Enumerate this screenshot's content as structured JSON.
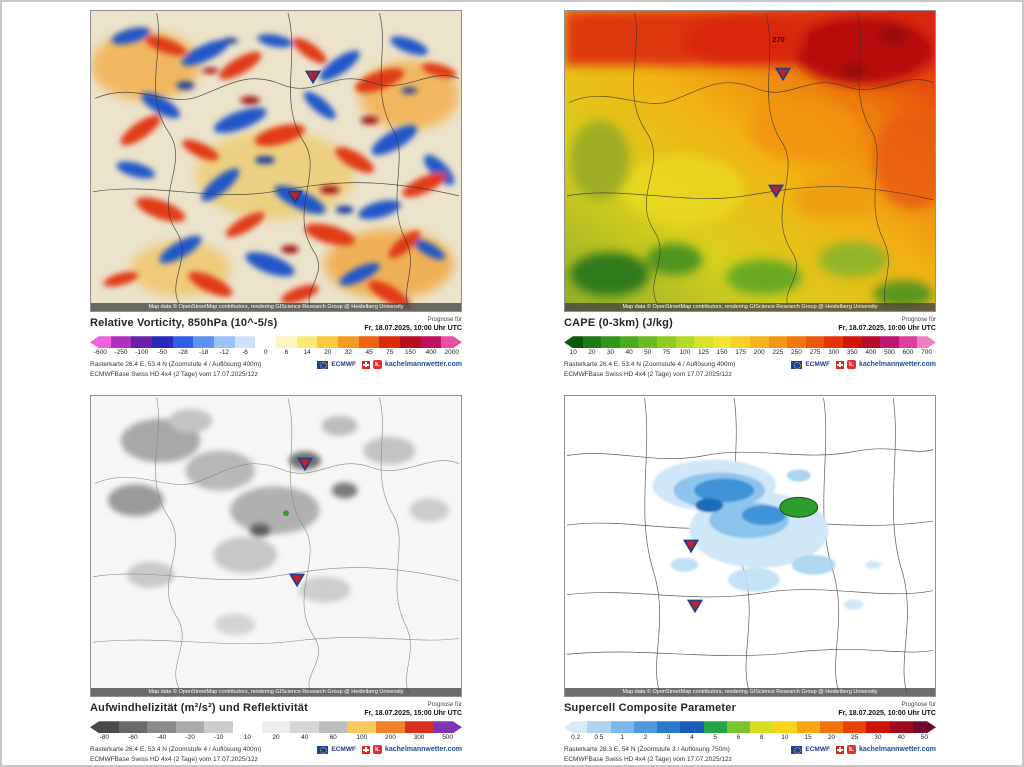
{
  "marker": {
    "fill": "#c62020",
    "stroke": "#1f3e8c"
  },
  "panels": [
    {
      "title": "Relative Vorticity, 850hPa (10^-5/s)",
      "prognose": {
        "label": "Prognose für",
        "time": "Fr, 18.07.2025, 10:00 Uhr UTC"
      },
      "footer": {
        "line1": "Rasterkarte 26.4 E, 53.4 N (Zoomstufe 4 / Auflösung 400m)",
        "line2": "ECMWFBase Swiss HD 4x4 (2 Tage) vom 17.07.2025/12z"
      },
      "attribution": "Map data © OpenStreetMap contributors, rendering GIScience Research Group @ Heidelberg University",
      "logos": {
        "ecmwf": "ECMWF",
        "site": "kachelmannwetter.com",
        "site_icon": "k."
      },
      "scale": {
        "ticks": [
          "-600",
          "-250",
          "-100",
          "-50",
          "-28",
          "-18",
          "-12",
          "-6",
          "0",
          "6",
          "14",
          "20",
          "32",
          "45",
          "75",
          "150",
          "400",
          "2000"
        ],
        "colors": [
          "#f060e0",
          "#b030c0",
          "#6a1fa8",
          "#2a2ab8",
          "#2f5fe8",
          "#5f93f2",
          "#9cc0f8",
          "#cfe0fb",
          "#ffffff",
          "#fdf6c0",
          "#fbe876",
          "#f9c943",
          "#f59a23",
          "#ef6410",
          "#dd2c0a",
          "#b80b1e",
          "#c01060",
          "#e84fa8"
        ]
      },
      "markers": [
        {
          "x": 0.6,
          "y": 0.22
        },
        {
          "x": 0.55,
          "y": 0.62
        }
      ]
    },
    {
      "title": "CAPE (0-3km) (J/kg)",
      "map_label": "270",
      "prognose": {
        "label": "Prognose für",
        "time": "Fr, 18.07.2025, 10:00 Uhr UTC"
      },
      "footer": {
        "line1": "Rasterkarte 26.4 E, 53.4 N (Zoomstufe 4 / Auflösung 400m)",
        "line2": "ECMWFBase Swiss HD 4x4 (2 Tage) vom 17.07.2025/12z"
      },
      "attribution": "Map data © OpenStreetMap contributors, rendering GIScience Research Group @ Heidelberg University",
      "logos": {
        "ecmwf": "ECMWF",
        "site": "kachelmannwetter.com",
        "site_icon": "k."
      },
      "scale": {
        "ticks": [
          "10",
          "20",
          "30",
          "40",
          "50",
          "75",
          "100",
          "125",
          "150",
          "175",
          "200",
          "225",
          "250",
          "275",
          "300",
          "350",
          "400",
          "500",
          "600",
          "700"
        ],
        "colors": [
          "#0c5a10",
          "#1d7a14",
          "#2f9618",
          "#4aac1c",
          "#69bd20",
          "#8ecb24",
          "#b4d828",
          "#d8e22c",
          "#f2e430",
          "#f8cf28",
          "#f7b31f",
          "#f59616",
          "#f2780e",
          "#ee5708",
          "#e83305",
          "#d31307",
          "#b30b28",
          "#c01570",
          "#dd3fa0",
          "#f07ec6"
        ]
      },
      "markers": [
        {
          "x": 0.59,
          "y": 0.21
        },
        {
          "x": 0.57,
          "y": 0.6
        }
      ]
    },
    {
      "title": "Aufwindhelizität (m²/s²) und Reflektivität",
      "prognose": {
        "label": "Prognose für",
        "time": "Fr, 18.07.2025, 15:00 Uhr UTC"
      },
      "footer": {
        "line1": "Rasterkarte 26.4 E, 53.4 N (Zoomstufe 4 / Auflösung 400m)",
        "line2": "ECMWFBase Swiss HD 4x4 (2 Tage) vom 17.07.2025/12z"
      },
      "attribution": "Map data © OpenStreetMap contributors, rendering GIScience Research Group @ Heidelberg University",
      "logos": {
        "ecmwf": "ECMWF",
        "site": "kachelmannwetter.com",
        "site_icon": "k."
      },
      "scale": {
        "ticks": [
          "-80",
          "-60",
          "-40",
          "-20",
          "-10",
          "10",
          "20",
          "40",
          "60",
          "100",
          "200",
          "300",
          "500"
        ],
        "colors": [
          "#4a4a4a",
          "#6a6a6a",
          "#8a8a8a",
          "#ababab",
          "#cccccc",
          "#ffffff",
          "#ececec",
          "#d6d6d6",
          "#bdbdbd",
          "#f7c95e",
          "#ef8127",
          "#d93020",
          "#7e35b5"
        ]
      },
      "markers": [
        {
          "x": 0.578,
          "y": 0.228
        },
        {
          "x": 0.556,
          "y": 0.612
        }
      ]
    },
    {
      "title": "Supercell Composite Parameter",
      "prognose": {
        "label": "Prognose für",
        "time": "Fr, 18.07.2025, 10:00 Uhr UTC"
      },
      "footer": {
        "line1": "Rasterkarte 28.3 E, 54 N (Zoomstufe 3 / Auflösung 750m)",
        "line2": "ECMWFBase Swiss HD 4x4 (2 Tage) vom 17.07.2025/12z"
      },
      "attribution": "Map data © OpenStreetMap contributors, rendering GIScience Research Group @ Heidelberg University",
      "logos": {
        "ecmwf": "ECMWF",
        "site": "kachelmannwetter.com",
        "site_icon": "k."
      },
      "scale": {
        "ticks": [
          "0.2",
          "0.5",
          "1",
          "2",
          "3",
          "4",
          "5",
          "6",
          "8",
          "10",
          "15",
          "20",
          "25",
          "30",
          "40",
          "50"
        ],
        "colors": [
          "#d6eaf8",
          "#aed4f2",
          "#7db9ea",
          "#4f9ade",
          "#2a79cc",
          "#1d5cb4",
          "#27a348",
          "#7cc32c",
          "#d7dd22",
          "#f8d51c",
          "#f7a814",
          "#f2750c",
          "#e84207",
          "#cc1405",
          "#a00b1e",
          "#6e0b30"
        ]
      },
      "markers": [
        {
          "x": 0.34,
          "y": 0.5
        },
        {
          "x": 0.35,
          "y": 0.7
        }
      ]
    }
  ]
}
